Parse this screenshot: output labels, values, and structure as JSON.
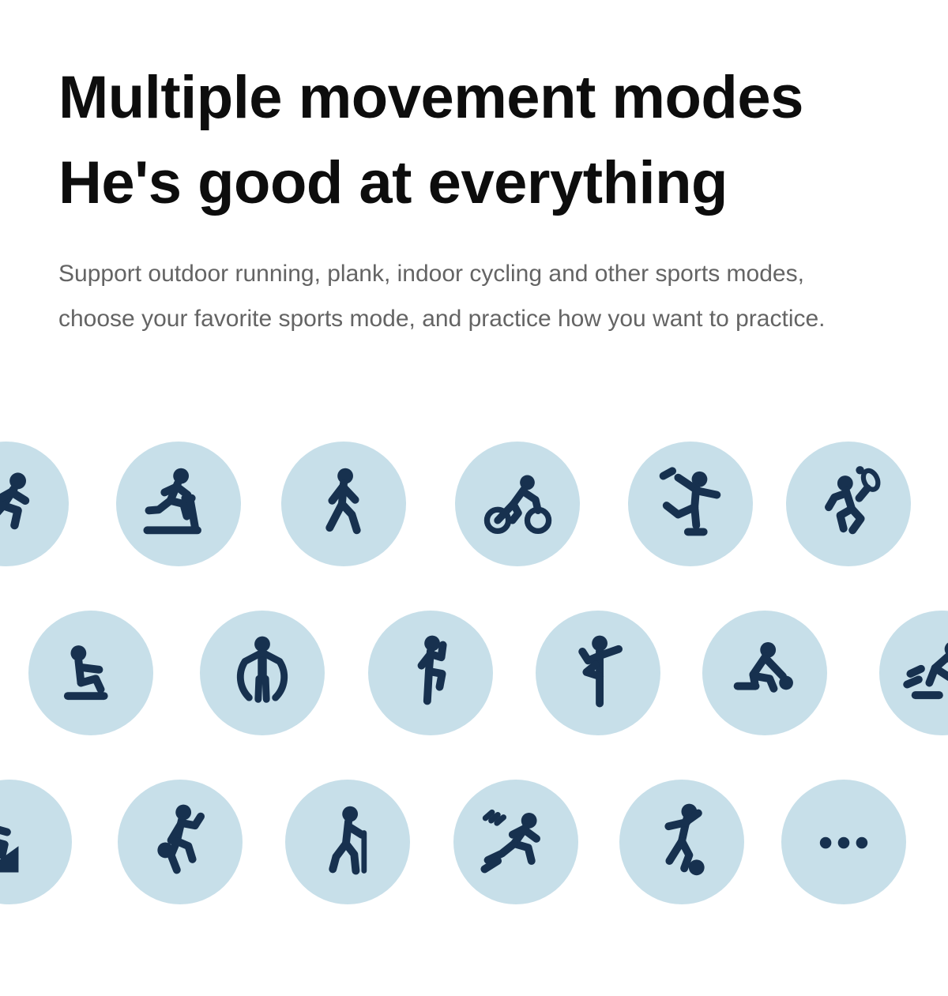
{
  "header": {
    "title_line1": "Multiple movement modes",
    "title_line2": "He's good at everything"
  },
  "intro": {
    "line1": "Support outdoor running, plank, indoor cycling and other sports modes,",
    "line2": "choose your favorite sports mode, and practice how you want to practice."
  },
  "colors": {
    "background": "#ffffff",
    "title_text": "#0d0d0d",
    "intro_text": "#646464",
    "circle_fill": "#c7dfe9",
    "icon_fill": "#17314f"
  },
  "modes": {
    "rows": [
      {
        "icons": [
          "running",
          "treadmill-running",
          "walking",
          "cycling",
          "figure-skating",
          "tennis"
        ]
      },
      {
        "icons": [
          "sit-ups",
          "chest-expander",
          "high-knees",
          "yoga",
          "curling",
          "speed-skating"
        ]
      },
      {
        "icons": [
          "stair-climbing",
          "basketball",
          "hiking",
          "sprint",
          "soccer",
          "more"
        ]
      }
    ]
  }
}
